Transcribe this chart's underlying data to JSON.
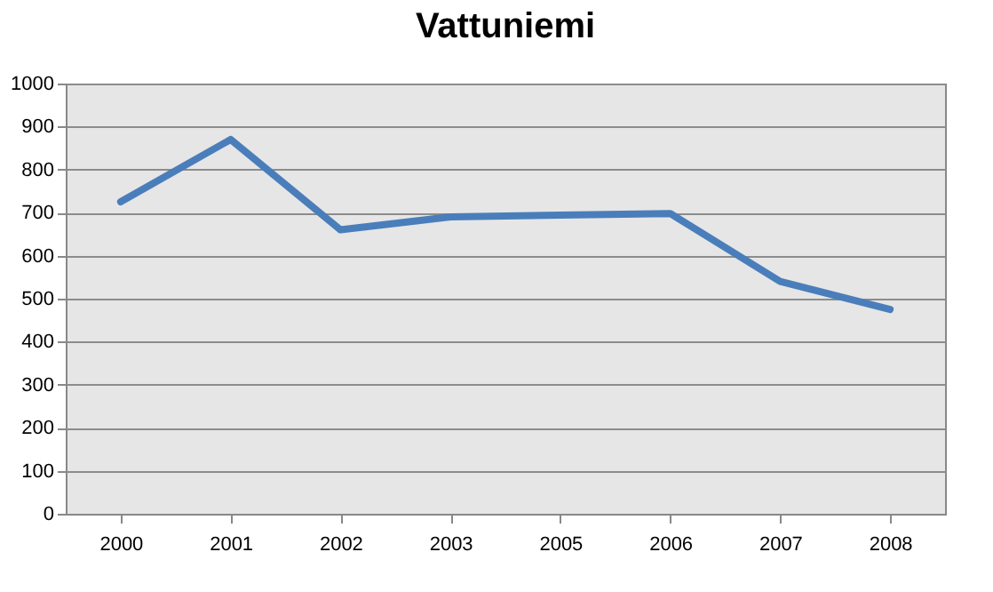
{
  "chart_data": {
    "type": "line",
    "title": "Vattuniemi",
    "categories": [
      "2000",
      "2001",
      "2002",
      "2003",
      "2005",
      "2006",
      "2007",
      "2008"
    ],
    "series": [
      {
        "color": "#4a7ebb",
        "values": [
          725,
          870,
          660,
          690,
          694,
          698,
          540,
          475
        ]
      }
    ],
    "ylim": [
      0,
      1000
    ],
    "yticks": [
      0,
      100,
      200,
      300,
      400,
      500,
      600,
      700,
      800,
      900,
      1000
    ],
    "grid": "y",
    "marker": "none",
    "line_style": "solid"
  }
}
